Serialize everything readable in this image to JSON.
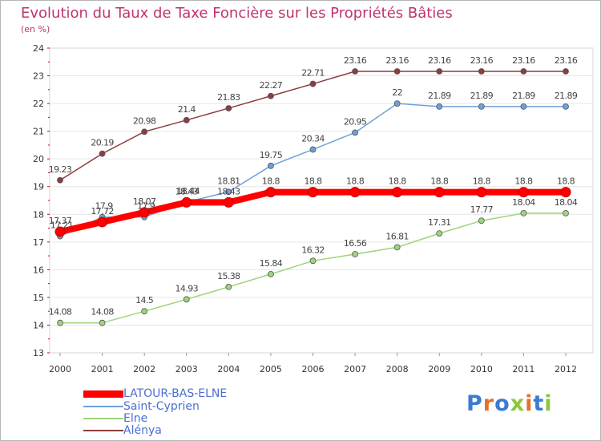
{
  "title": "Evolution du Taux de Taxe Foncière sur les Propriétés Bâties",
  "unit_label": "(en %)",
  "logo": {
    "letters": [
      "P",
      "r",
      "o",
      "x",
      "i",
      "t",
      "i"
    ],
    "colors": [
      "#3a7bd5",
      "#e8702a",
      "#3a7bd5",
      "#8cc63e",
      "#e8702a",
      "#3a7bd5",
      "#8cc63e"
    ]
  },
  "chart_data": {
    "type": "line",
    "title": "Evolution du Taux de Taxe Foncière sur les Propriétés Bâties",
    "xlabel": "",
    "ylabel": "(en %)",
    "categories": [
      "2000",
      "2001",
      "2002",
      "2003",
      "2004",
      "2005",
      "2006",
      "2007",
      "2008",
      "2009",
      "2010",
      "2011",
      "2012"
    ],
    "ylim": [
      13,
      24
    ],
    "yticks": [
      "13",
      "14",
      "15",
      "16",
      "17",
      "18",
      "19",
      "20",
      "21",
      "22",
      "23",
      "24"
    ],
    "series": [
      {
        "name": "LATOUR-BAS-ELNE",
        "color": "#ff0000",
        "values": [
          17.37,
          17.72,
          18.07,
          18.43,
          18.43,
          18.8,
          18.8,
          18.8,
          18.8,
          18.8,
          18.8,
          18.8,
          18.8
        ],
        "labels": [
          "17.37",
          "17.72",
          "18.07",
          "18.43",
          "18.43",
          "18.8",
          "18.8",
          "18.8",
          "18.8",
          "18.8",
          "18.8",
          "18.8",
          "18.8"
        ]
      },
      {
        "name": "Saint-Cyprien",
        "color": "#6fa1d8",
        "values": [
          17.21,
          17.9,
          17.9,
          18.44,
          18.81,
          19.75,
          20.34,
          20.95,
          22,
          21.89,
          21.89,
          21.89,
          21.89
        ],
        "labels": [
          "17.21",
          "17.9",
          "17.9",
          "18.44",
          "18.81",
          "19.75",
          "20.34",
          "20.95",
          "22",
          "21.89",
          "21.89",
          "21.89",
          "21.89"
        ]
      },
      {
        "name": "Elne",
        "color": "#9ed47a",
        "values": [
          14.08,
          14.08,
          14.5,
          14.93,
          15.38,
          15.84,
          16.32,
          16.56,
          16.81,
          17.31,
          17.77,
          18.04,
          18.04
        ],
        "labels": [
          "14.08",
          "14.08",
          "14.5",
          "14.93",
          "15.38",
          "15.84",
          "16.32",
          "16.56",
          "16.81",
          "17.31",
          "17.77",
          "18.04",
          "18.04"
        ]
      },
      {
        "name": "Alénya",
        "color": "#8c3d3d",
        "values": [
          19.23,
          20.19,
          20.98,
          21.4,
          21.83,
          22.27,
          22.71,
          23.16,
          23.16,
          23.16,
          23.16,
          23.16,
          23.16
        ],
        "labels": [
          "19.23",
          "20.19",
          "20.98",
          "21.4",
          "21.83",
          "22.27",
          "22.71",
          "23.16",
          "23.16",
          "23.16",
          "23.16",
          "23.16",
          "23.16"
        ]
      }
    ]
  }
}
